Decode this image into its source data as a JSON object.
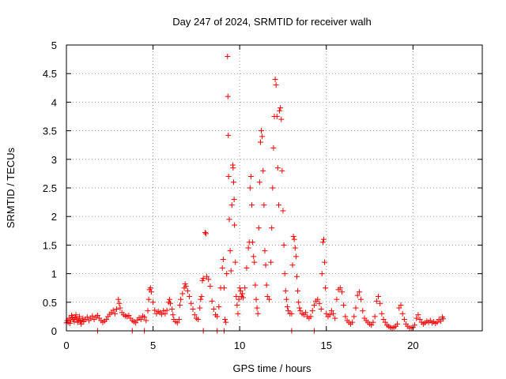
{
  "chart_data": {
    "type": "scatter",
    "title": "Day 247 of 2024, SRMTID for receiver walh",
    "xlabel": "GPS time / hours",
    "ylabel": "SRMTID / TECUs",
    "xlim": [
      0,
      24
    ],
    "ylim": [
      0,
      5
    ],
    "xticks": [
      "0",
      "5",
      "10",
      "15",
      "20"
    ],
    "xtick_values": [
      0,
      5,
      10,
      15,
      20
    ],
    "yticks": [
      "0",
      "0.5",
      "1",
      "1.5",
      "2",
      "2.5",
      "3",
      "3.5",
      "4",
      "4.5",
      "5"
    ],
    "ytick_values": [
      0,
      0.5,
      1,
      1.5,
      2,
      2.5,
      3,
      3.5,
      4,
      4.5,
      5
    ],
    "grid": true,
    "marker": "+",
    "color": "#ff0000",
    "series": [
      {
        "points": [
          [
            0.0,
            0.14
          ],
          [
            0.05,
            0.18
          ],
          [
            0.1,
            0.15
          ],
          [
            0.15,
            0.22
          ],
          [
            0.2,
            0.13
          ],
          [
            0.25,
            0.19
          ],
          [
            0.3,
            0.27
          ],
          [
            0.35,
            0.24
          ],
          [
            0.4,
            0.2
          ],
          [
            0.45,
            0.16
          ],
          [
            0.5,
            0.23
          ],
          [
            0.55,
            0.28
          ],
          [
            0.6,
            0.21
          ],
          [
            0.65,
            0.15
          ],
          [
            0.7,
            0.19
          ],
          [
            0.75,
            0.25
          ],
          [
            0.8,
            0.17
          ],
          [
            0.85,
            0.12
          ],
          [
            0.9,
            0.18
          ],
          [
            0.95,
            0.22
          ],
          [
            1.0,
            0.16
          ],
          [
            1.1,
            0.2
          ],
          [
            1.2,
            0.24
          ],
          [
            1.3,
            0.18
          ],
          [
            1.4,
            0.22
          ],
          [
            1.5,
            0.26
          ],
          [
            1.6,
            0.2
          ],
          [
            1.7,
            0.24
          ],
          [
            1.8,
            0.27
          ],
          [
            1.9,
            0.22
          ],
          [
            2.0,
            0.18
          ],
          [
            2.1,
            0.15
          ],
          [
            2.2,
            0.17
          ],
          [
            2.3,
            0.2
          ],
          [
            2.4,
            0.25
          ],
          [
            2.5,
            0.29
          ],
          [
            2.6,
            0.32
          ],
          [
            2.7,
            0.36
          ],
          [
            2.8,
            0.3
          ],
          [
            2.9,
            0.38
          ],
          [
            3.0,
            0.55
          ],
          [
            3.05,
            0.48
          ],
          [
            3.1,
            0.4
          ],
          [
            3.2,
            0.32
          ],
          [
            3.3,
            0.28
          ],
          [
            3.4,
            0.26
          ],
          [
            3.5,
            0.25
          ],
          [
            3.6,
            0.27
          ],
          [
            3.7,
            0.22
          ],
          [
            3.8,
            0.18
          ],
          [
            3.9,
            0.16
          ],
          [
            4.0,
            0.14
          ],
          [
            4.1,
            0.19
          ],
          [
            4.2,
            0.23
          ],
          [
            4.3,
            0.2
          ],
          [
            4.4,
            0.26
          ],
          [
            4.5,
            0.24
          ],
          [
            4.6,
            0.18
          ],
          [
            4.7,
            0.35
          ],
          [
            4.75,
            0.55
          ],
          [
            4.8,
            0.72
          ],
          [
            4.85,
            0.75
          ],
          [
            4.9,
            0.68
          ],
          [
            5.0,
            0.5
          ],
          [
            5.1,
            0.36
          ],
          [
            5.2,
            0.3
          ],
          [
            5.3,
            0.34
          ],
          [
            5.4,
            0.32
          ],
          [
            5.5,
            0.29
          ],
          [
            5.6,
            0.35
          ],
          [
            5.7,
            0.3
          ],
          [
            5.8,
            0.36
          ],
          [
            5.9,
            0.5
          ],
          [
            5.95,
            0.55
          ],
          [
            6.0,
            0.48
          ],
          [
            6.1,
            0.38
          ],
          [
            6.15,
            0.28
          ],
          [
            6.2,
            0.2
          ],
          [
            6.3,
            0.16
          ],
          [
            6.4,
            0.14
          ],
          [
            6.5,
            0.2
          ],
          [
            6.55,
            0.45
          ],
          [
            6.6,
            0.55
          ],
          [
            6.7,
            0.65
          ],
          [
            6.8,
            0.75
          ],
          [
            6.85,
            0.82
          ],
          [
            6.9,
            0.78
          ],
          [
            7.0,
            0.7
          ],
          [
            7.1,
            0.6
          ],
          [
            7.2,
            0.48
          ],
          [
            7.3,
            0.38
          ],
          [
            7.4,
            0.28
          ],
          [
            7.5,
            0.22
          ],
          [
            7.6,
            0.2
          ],
          [
            7.7,
            0.4
          ],
          [
            7.75,
            0.55
          ],
          [
            7.8,
            0.6
          ],
          [
            7.85,
            0.88
          ],
          [
            7.9,
            0.92
          ],
          [
            8.0,
            1.72
          ],
          [
            8.05,
            1.7
          ],
          [
            8.1,
            0.95
          ],
          [
            8.2,
            0.9
          ],
          [
            8.3,
            0.78
          ],
          [
            8.4,
            0.52
          ],
          [
            8.5,
            0.38
          ],
          [
            8.6,
            0.28
          ],
          [
            8.7,
            0.25
          ],
          [
            8.8,
            0.42
          ],
          [
            8.9,
            0.75
          ],
          [
            9.0,
            1.1
          ],
          [
            9.05,
            1.25
          ],
          [
            9.1,
            0.75
          ],
          [
            9.15,
            0.2
          ],
          [
            9.2,
            0.15
          ],
          [
            9.25,
            1.0
          ],
          [
            9.3,
            4.8
          ],
          [
            9.32,
            4.1
          ],
          [
            9.34,
            3.42
          ],
          [
            9.36,
            2.7
          ],
          [
            9.4,
            1.95
          ],
          [
            9.45,
            1.4
          ],
          [
            9.5,
            1.05
          ],
          [
            9.55,
            2.2
          ],
          [
            9.6,
            2.9
          ],
          [
            9.62,
            2.85
          ],
          [
            9.65,
            2.6
          ],
          [
            9.68,
            2.3
          ],
          [
            9.7,
            1.85
          ],
          [
            9.75,
            1.2
          ],
          [
            9.8,
            0.6
          ],
          [
            9.85,
            0.45
          ],
          [
            9.9,
            0.3
          ],
          [
            9.95,
            0.55
          ],
          [
            10.0,
            0.75
          ],
          [
            10.05,
            0.7
          ],
          [
            10.1,
            0.6
          ],
          [
            10.15,
            0.65
          ],
          [
            10.2,
            0.58
          ],
          [
            10.3,
            0.75
          ],
          [
            10.4,
            1.1
          ],
          [
            10.5,
            1.45
          ],
          [
            10.55,
            1.55
          ],
          [
            10.6,
            2.5
          ],
          [
            10.65,
            2.7
          ],
          [
            10.7,
            2.2
          ],
          [
            10.75,
            1.55
          ],
          [
            10.8,
            1.3
          ],
          [
            10.85,
            1.2
          ],
          [
            10.9,
            0.8
          ],
          [
            10.95,
            0.55
          ],
          [
            11.0,
            0.4
          ],
          [
            11.05,
            0.3
          ],
          [
            11.1,
            1.8
          ],
          [
            11.15,
            2.6
          ],
          [
            11.2,
            3.3
          ],
          [
            11.25,
            3.5
          ],
          [
            11.3,
            3.4
          ],
          [
            11.35,
            2.8
          ],
          [
            11.4,
            2.2
          ],
          [
            11.45,
            1.4
          ],
          [
            11.5,
            1.15
          ],
          [
            11.55,
            0.8
          ],
          [
            11.6,
            0.6
          ],
          [
            11.7,
            0.55
          ],
          [
            11.8,
            1.2
          ],
          [
            11.85,
            1.8
          ],
          [
            11.9,
            2.5
          ],
          [
            11.95,
            3.2
          ],
          [
            12.0,
            3.75
          ],
          [
            12.05,
            4.4
          ],
          [
            12.1,
            4.3
          ],
          [
            12.15,
            3.75
          ],
          [
            12.2,
            2.85
          ],
          [
            12.25,
            2.2
          ],
          [
            12.3,
            3.85
          ],
          [
            12.35,
            3.9
          ],
          [
            12.4,
            3.7
          ],
          [
            12.45,
            2.8
          ],
          [
            12.5,
            2.1
          ],
          [
            12.55,
            1.5
          ],
          [
            12.6,
            1.0
          ],
          [
            12.65,
            0.7
          ],
          [
            12.7,
            0.55
          ],
          [
            12.75,
            0.42
          ],
          [
            12.8,
            0.35
          ],
          [
            12.9,
            0.3
          ],
          [
            13.0,
            0.3
          ],
          [
            13.05,
            1.15
          ],
          [
            13.1,
            1.65
          ],
          [
            13.15,
            1.6
          ],
          [
            13.2,
            1.45
          ],
          [
            13.25,
            1.3
          ],
          [
            13.3,
            0.95
          ],
          [
            13.35,
            0.7
          ],
          [
            13.4,
            0.5
          ],
          [
            13.45,
            0.4
          ],
          [
            13.5,
            0.35
          ],
          [
            13.6,
            0.3
          ],
          [
            13.7,
            0.28
          ],
          [
            13.8,
            0.32
          ],
          [
            13.9,
            0.25
          ],
          [
            14.0,
            0.22
          ],
          [
            14.1,
            0.25
          ],
          [
            14.2,
            0.35
          ],
          [
            14.3,
            0.45
          ],
          [
            14.4,
            0.52
          ],
          [
            14.5,
            0.55
          ],
          [
            14.6,
            0.48
          ],
          [
            14.7,
            0.38
          ],
          [
            14.75,
            1.0
          ],
          [
            14.8,
            1.55
          ],
          [
            14.85,
            1.6
          ],
          [
            14.9,
            1.2
          ],
          [
            14.95,
            0.75
          ],
          [
            15.0,
            0.3
          ],
          [
            15.1,
            0.25
          ],
          [
            15.2,
            0.28
          ],
          [
            15.3,
            0.35
          ],
          [
            15.4,
            0.3
          ],
          [
            15.5,
            0.22
          ],
          [
            15.6,
            0.55
          ],
          [
            15.7,
            0.72
          ],
          [
            15.8,
            0.75
          ],
          [
            15.9,
            0.68
          ],
          [
            16.0,
            0.45
          ],
          [
            16.1,
            0.25
          ],
          [
            16.2,
            0.18
          ],
          [
            16.3,
            0.15
          ],
          [
            16.4,
            0.12
          ],
          [
            16.5,
            0.15
          ],
          [
            16.6,
            0.25
          ],
          [
            16.7,
            0.4
          ],
          [
            16.8,
            0.62
          ],
          [
            16.9,
            0.68
          ],
          [
            17.0,
            0.55
          ],
          [
            17.1,
            0.35
          ],
          [
            17.2,
            0.22
          ],
          [
            17.3,
            0.18
          ],
          [
            17.4,
            0.15
          ],
          [
            17.5,
            0.12
          ],
          [
            17.6,
            0.1
          ],
          [
            17.7,
            0.15
          ],
          [
            17.8,
            0.25
          ],
          [
            17.9,
            0.52
          ],
          [
            18.0,
            0.6
          ],
          [
            18.1,
            0.48
          ],
          [
            18.2,
            0.3
          ],
          [
            18.3,
            0.2
          ],
          [
            18.4,
            0.15
          ],
          [
            18.5,
            0.1
          ],
          [
            18.6,
            0.08
          ],
          [
            18.7,
            0.06
          ],
          [
            18.8,
            0.05
          ],
          [
            18.9,
            0.06
          ],
          [
            19.0,
            0.08
          ],
          [
            19.1,
            0.12
          ],
          [
            19.2,
            0.4
          ],
          [
            19.3,
            0.45
          ],
          [
            19.4,
            0.3
          ],
          [
            19.5,
            0.2
          ],
          [
            19.6,
            0.12
          ],
          [
            19.7,
            0.08
          ],
          [
            19.8,
            0.05
          ],
          [
            19.9,
            0.05
          ],
          [
            20.0,
            0.06
          ],
          [
            20.1,
            0.1
          ],
          [
            20.2,
            0.22
          ],
          [
            20.3,
            0.28
          ],
          [
            20.4,
            0.2
          ],
          [
            20.5,
            0.15
          ],
          [
            20.6,
            0.12
          ],
          [
            20.7,
            0.14
          ],
          [
            20.8,
            0.17
          ],
          [
            20.9,
            0.15
          ],
          [
            21.0,
            0.18
          ],
          [
            21.1,
            0.14
          ],
          [
            21.2,
            0.16
          ],
          [
            21.3,
            0.13
          ],
          [
            21.4,
            0.15
          ],
          [
            21.5,
            0.2
          ],
          [
            21.6,
            0.17
          ],
          [
            21.7,
            0.24
          ],
          [
            21.75,
            0.21
          ],
          [
            1.8,
            0.0
          ],
          [
            3.8,
            0.0
          ],
          [
            4.5,
            0.0
          ],
          [
            7.9,
            0.0
          ],
          [
            8.7,
            0.0
          ],
          [
            9.1,
            0.0
          ],
          [
            13.0,
            0.0
          ],
          [
            14.3,
            0.0
          ]
        ]
      }
    ]
  }
}
